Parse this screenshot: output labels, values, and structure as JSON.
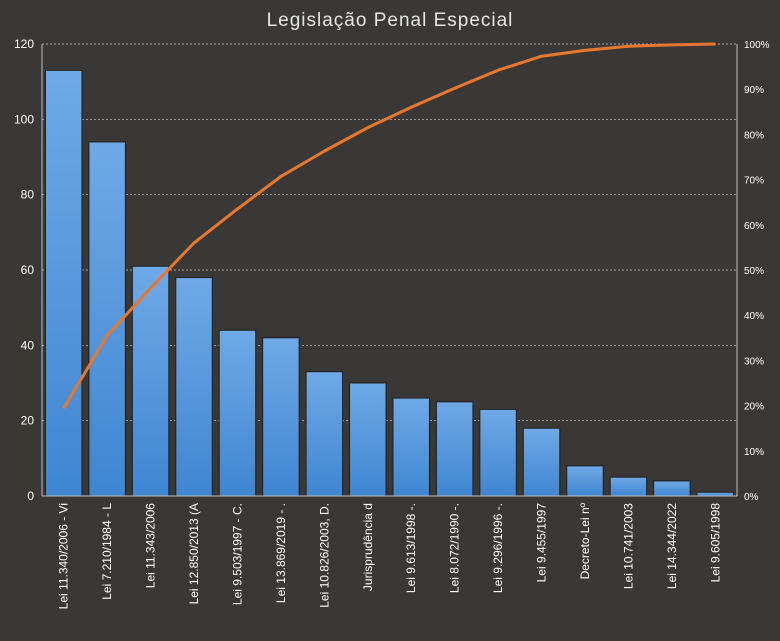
{
  "chart_data": {
    "type": "bar",
    "title": "Legislação Penal Especial",
    "categories": [
      "Lei 11.340/2006 - Vi",
      "Lei 7.210/1984 - L",
      "Lei 11.343/2006",
      "Lei 12.850/2013 (A",
      "Lei 9.503/1997 - C.",
      "Lei 13.869/2019 - .",
      "Lei 10.826/2003, D.",
      "Jurisprudência d",
      "Lei 9.613/1998 -.",
      "Lei 8.072/1990 -.",
      "Lei 9.296/1996 -.",
      "Lei 9.455/1997",
      "Decreto-Lei nº",
      "Lei 10.741/2003",
      "Lei 14.344/2022",
      "Lei 9.605/1998"
    ],
    "series": [
      {
        "type": "bar",
        "values": [
          113,
          94,
          61,
          58,
          44,
          42,
          33,
          30,
          26,
          25,
          23,
          18,
          8,
          5,
          4,
          1
        ]
      },
      {
        "type": "line",
        "axis": "right",
        "values": [
          19.4,
          35.5,
          46.0,
          56.0,
          63.5,
          70.7,
          76.3,
          81.5,
          86.0,
          90.2,
          94.2,
          97.3,
          98.6,
          99.5,
          99.8,
          100
        ]
      }
    ],
    "ylim": [
      0,
      120
    ],
    "yticks": [
      "0",
      "20",
      "40",
      "60",
      "80",
      "100",
      "120"
    ],
    "y2lim": [
      0,
      100
    ],
    "y2ticks": [
      "0%",
      "10%",
      "20%",
      "30%",
      "40%",
      "50%",
      "60%",
      "70%",
      "80%",
      "90%",
      "100%"
    ],
    "grid": true,
    "legend": "none",
    "colors": {
      "bar": "#4a90d9",
      "bar_edge": "#1e1e1e",
      "line": "#e8772e",
      "background": "#3a3836",
      "grid": "#d0d0d0"
    }
  }
}
